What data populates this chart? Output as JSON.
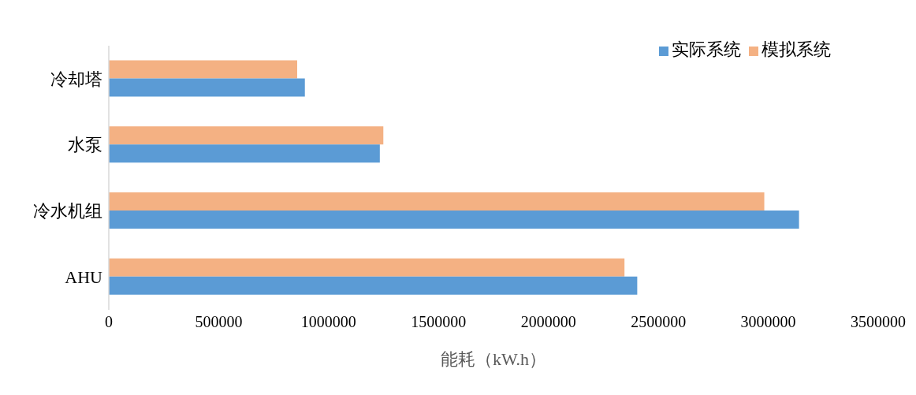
{
  "chart_data": {
    "type": "bar",
    "orientation": "horizontal",
    "xlabel": "能耗（kW.h）",
    "categories": [
      "冷却塔",
      "水泵",
      "冷水机组",
      "AHU"
    ],
    "series": [
      {
        "name": "模拟系统",
        "color": "#f4b183",
        "values": [
          857000,
          1249000,
          2982000,
          2346000
        ]
      },
      {
        "name": "实际系统",
        "color": "#5b9bd5",
        "values": [
          892000,
          1233000,
          3140000,
          2404000
        ]
      }
    ],
    "xlim": [
      0,
      3500000
    ],
    "xticks": [
      0,
      500000,
      1000000,
      1500000,
      2000000,
      2500000,
      3000000,
      3500000
    ],
    "legend": "top right",
    "grid": false
  }
}
